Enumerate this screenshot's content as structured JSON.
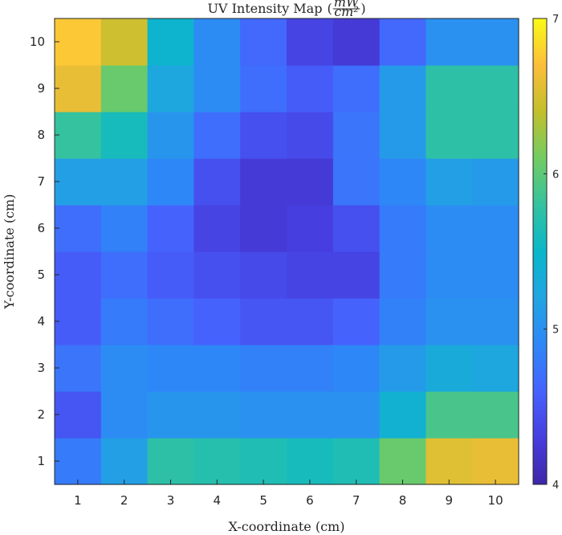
{
  "chart_data": {
    "type": "heatmap",
    "title": "UV Intensity Map",
    "title_units_numerator": "mW",
    "title_units_denominator": "cm²",
    "xlabel": "X-coordinate (cm)",
    "ylabel": "Y-coordinate (cm)",
    "x": [
      1,
      2,
      3,
      4,
      5,
      6,
      7,
      8,
      9,
      10
    ],
    "y": [
      1,
      2,
      3,
      4,
      5,
      6,
      7,
      8,
      9,
      10
    ],
    "values": [
      [
        4.8,
        5.15,
        5.75,
        5.7,
        5.65,
        5.6,
        5.65,
        6.05,
        6.55,
        6.6
      ],
      [
        4.5,
        4.95,
        5.05,
        5.05,
        5.0,
        5.0,
        5.0,
        5.4,
        5.9,
        5.9
      ],
      [
        4.75,
        4.95,
        4.9,
        4.9,
        4.85,
        4.85,
        4.9,
        5.1,
        5.3,
        5.25
      ],
      [
        4.55,
        4.8,
        4.7,
        4.6,
        4.5,
        4.5,
        4.6,
        4.85,
        5.0,
        5.0
      ],
      [
        4.55,
        4.7,
        4.55,
        4.45,
        4.4,
        4.35,
        4.35,
        4.8,
        4.95,
        4.95
      ],
      [
        4.7,
        4.85,
        4.6,
        4.35,
        4.25,
        4.3,
        4.45,
        4.8,
        4.95,
        4.95
      ],
      [
        5.15,
        5.15,
        4.9,
        4.45,
        4.25,
        4.25,
        4.75,
        4.9,
        5.15,
        5.1
      ],
      [
        5.8,
        5.6,
        5.05,
        4.7,
        4.45,
        4.4,
        4.75,
        5.1,
        5.75,
        5.75
      ],
      [
        6.6,
        6.05,
        5.25,
        4.95,
        4.7,
        4.55,
        4.7,
        5.1,
        5.75,
        5.75
      ],
      [
        6.75,
        6.45,
        5.45,
        4.95,
        4.65,
        4.35,
        4.25,
        4.65,
        5.0,
        5.0
      ]
    ],
    "colormap": "parula",
    "clim": [
      4,
      7
    ],
    "colorbar_ticks": [
      4,
      5,
      6,
      7
    ],
    "colorbar_location": "right",
    "grid": false
  }
}
